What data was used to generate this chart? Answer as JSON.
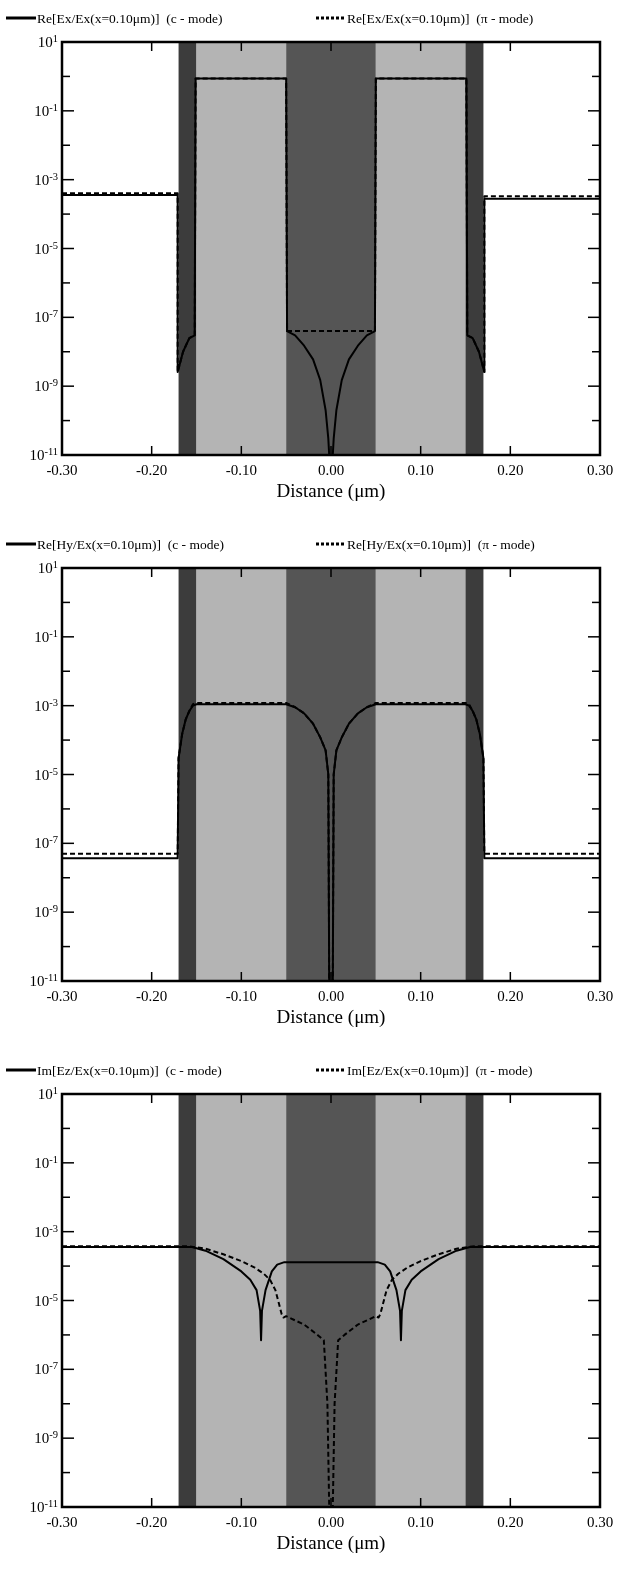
{
  "chart_data": [
    {
      "type": "line",
      "xlabel": "Distance (μm)",
      "log": "y",
      "legend": "top",
      "xlim": [
        -0.3,
        0.3
      ],
      "ylim": [
        1e-11,
        10
      ],
      "xticks": [
        {
          "value": -0.3,
          "label": "-0.30"
        },
        {
          "value": -0.2,
          "label": "-0.20"
        },
        {
          "value": -0.1,
          "label": "-0.10"
        },
        {
          "value": 0,
          "label": "0.00"
        },
        {
          "value": 0.1,
          "label": "0.10"
        },
        {
          "value": 0.2,
          "label": "0.20"
        },
        {
          "value": 0.3,
          "label": "0.30"
        }
      ],
      "yticks": [
        {
          "value": 10,
          "label": "10$^{1}$"
        },
        {
          "value": 1,
          "label": null
        },
        {
          "value": 0.1,
          "label": "10$^{-1}$"
        },
        {
          "value": 0.01,
          "label": null
        },
        {
          "value": 0.001,
          "label": "10$^{-3}$"
        },
        {
          "value": 0.0001,
          "label": null
        },
        {
          "value": 1e-05,
          "label": "10$^{-5}$"
        },
        {
          "value": 1e-06,
          "label": null
        },
        {
          "value": 1e-07,
          "label": "10$^{-7}$"
        },
        {
          "value": 1e-08,
          "label": null
        },
        {
          "value": 1e-09,
          "label": "10$^{-9}$"
        },
        {
          "value": 1e-10,
          "label": null
        },
        {
          "value": 1e-11,
          "label": "10$^{-11}$"
        }
      ],
      "bands": [
        {
          "axis": "x",
          "from": -0.17,
          "to": -0.15,
          "color": "#3c3c3c"
        },
        {
          "axis": "x",
          "from": -0.15,
          "to": -0.05,
          "color": "#b4b4b4"
        },
        {
          "axis": "x",
          "from": -0.05,
          "to": 0.05,
          "color": "#555555"
        },
        {
          "axis": "x",
          "from": 0.05,
          "to": 0.15,
          "color": "#b4b4b4"
        },
        {
          "axis": "x",
          "from": 0.15,
          "to": 0.17,
          "color": "#3c3c3c"
        }
      ],
      "series": [
        {
          "name": "Re[Ex/Ex(x=0.10μm)]  (c - mode)",
          "color": "#000000",
          "line_style": "solid",
          "x": [
            -0.3,
            -0.171,
            -0.171,
            -0.165,
            -0.158,
            -0.152,
            -0.151,
            -0.05,
            -0.049,
            -0.04,
            -0.03,
            -0.02,
            -0.012,
            -0.006,
            -0.003,
            -0.002,
            0.002,
            0.003,
            0.006,
            0.012,
            0.02,
            0.03,
            0.04,
            0.049,
            0.05,
            0.151,
            0.152,
            0.158,
            0.165,
            0.171,
            0.171,
            0.3
          ],
          "values": [
            0.00036,
            0.00036,
            2.6e-09,
            1e-08,
            2.5e-08,
            3e-08,
            0.87,
            0.87,
            4e-08,
            3e-08,
            1.5e-08,
            6e-09,
            1.5e-09,
            2e-10,
            3e-11,
            1e-11,
            1e-11,
            3e-11,
            2e-10,
            1.5e-09,
            6e-09,
            1.5e-08,
            3e-08,
            4e-08,
            0.87,
            0.87,
            3e-08,
            2.5e-08,
            1e-08,
            2.6e-09,
            0.00028,
            0.00028
          ]
        },
        {
          "name": "Re[Ex/Ex(x=0.10μm)]  (π - mode)",
          "color": "#000000",
          "line_style": "dashed",
          "x": [
            -0.3,
            -0.171,
            -0.171,
            -0.165,
            -0.158,
            -0.152,
            -0.151,
            -0.05,
            -0.049,
            0.049,
            0.05,
            0.151,
            0.152,
            0.158,
            0.165,
            0.171,
            0.171,
            0.3
          ],
          "values": [
            0.0004,
            0.0004,
            2.6e-09,
            1e-08,
            2.5e-08,
            3e-08,
            0.87,
            0.87,
            4e-08,
            4e-08,
            0.87,
            0.87,
            3e-08,
            2.5e-08,
            1e-08,
            2.6e-09,
            0.00033,
            0.00033
          ]
        }
      ]
    },
    {
      "type": "line",
      "xlabel": "Distance (μm)",
      "log": "y",
      "legend": "top",
      "xlim": [
        -0.3,
        0.3
      ],
      "ylim": [
        1e-11,
        10
      ],
      "xticks": [
        {
          "value": -0.3,
          "label": "-0.30"
        },
        {
          "value": -0.2,
          "label": "-0.20"
        },
        {
          "value": -0.1,
          "label": "-0.10"
        },
        {
          "value": 0,
          "label": "0.00"
        },
        {
          "value": 0.1,
          "label": "0.10"
        },
        {
          "value": 0.2,
          "label": "0.20"
        },
        {
          "value": 0.3,
          "label": "0.30"
        }
      ],
      "yticks": [
        {
          "value": 10,
          "label": "10$^{1}$"
        },
        {
          "value": 1,
          "label": null
        },
        {
          "value": 0.1,
          "label": "10$^{-1}$"
        },
        {
          "value": 0.01,
          "label": null
        },
        {
          "value": 0.001,
          "label": "10$^{-3}$"
        },
        {
          "value": 0.0001,
          "label": null
        },
        {
          "value": 1e-05,
          "label": "10$^{-5}$"
        },
        {
          "value": 1e-06,
          "label": null
        },
        {
          "value": 1e-07,
          "label": "10$^{-7}$"
        },
        {
          "value": 1e-08,
          "label": null
        },
        {
          "value": 1e-09,
          "label": "10$^{-9}$"
        },
        {
          "value": 1e-10,
          "label": null
        },
        {
          "value": 1e-11,
          "label": "10$^{-11}$"
        }
      ],
      "bands": [
        {
          "axis": "x",
          "from": -0.17,
          "to": -0.15,
          "color": "#3c3c3c"
        },
        {
          "axis": "x",
          "from": -0.15,
          "to": -0.05,
          "color": "#b4b4b4"
        },
        {
          "axis": "x",
          "from": -0.05,
          "to": 0.05,
          "color": "#555555"
        },
        {
          "axis": "x",
          "from": 0.05,
          "to": 0.15,
          "color": "#b4b4b4"
        },
        {
          "axis": "x",
          "from": 0.15,
          "to": 0.17,
          "color": "#3c3c3c"
        }
      ],
      "series": [
        {
          "name": "Re[Hy/Ex(x=0.10μm)]  (c - mode)",
          "color": "#000000",
          "line_style": "solid",
          "x": [
            -0.3,
            -0.171,
            -0.17,
            -0.166,
            -0.162,
            -0.158,
            -0.154,
            -0.15,
            -0.05,
            -0.04,
            -0.03,
            -0.02,
            -0.012,
            -0.006,
            -0.003,
            -0.002,
            0.002,
            0.003,
            0.006,
            0.012,
            0.02,
            0.03,
            0.04,
            0.05,
            0.15,
            0.154,
            0.158,
            0.162,
            0.166,
            0.17,
            0.171,
            0.3
          ],
          "values": [
            3.7e-08,
            3.7e-08,
            3e-05,
            0.00015,
            0.0004,
            0.0007,
            0.001,
            0.0011,
            0.0011,
            0.0009,
            0.0006,
            0.0003,
            0.00012,
            5e-05,
            1e-05,
            1e-11,
            1e-11,
            1e-05,
            5e-05,
            0.00012,
            0.0003,
            0.0006,
            0.0009,
            0.0011,
            0.0011,
            0.001,
            0.0007,
            0.0004,
            0.00015,
            3e-05,
            3.7e-08,
            3.7e-08
          ]
        },
        {
          "name": "Re[Hy/Ex(x=0.10μm)]  (π - mode)",
          "color": "#000000",
          "line_style": "dashed",
          "x": [
            -0.3,
            -0.171,
            -0.17,
            -0.166,
            -0.162,
            -0.158,
            -0.154,
            -0.15,
            -0.05,
            -0.04,
            -0.03,
            -0.02,
            -0.012,
            -0.006,
            -0.003,
            -0.002,
            0.002,
            0.003,
            0.006,
            0.012,
            0.02,
            0.03,
            0.04,
            0.05,
            0.15,
            0.154,
            0.158,
            0.162,
            0.166,
            0.17,
            0.171,
            0.3
          ],
          "values": [
            5e-08,
            5e-08,
            3e-05,
            0.00015,
            0.0004,
            0.0007,
            0.0011,
            0.0012,
            0.0012,
            0.0009,
            0.0006,
            0.0003,
            0.00012,
            5e-05,
            1e-05,
            1e-11,
            1e-11,
            1e-05,
            5e-05,
            0.00012,
            0.0003,
            0.0006,
            0.0009,
            0.0012,
            0.0012,
            0.0011,
            0.0007,
            0.0004,
            0.00015,
            3e-05,
            5e-08,
            5e-08
          ]
        }
      ]
    },
    {
      "type": "line",
      "xlabel": "Distance (μm)",
      "log": "y",
      "legend": "top",
      "xlim": [
        -0.3,
        0.3
      ],
      "ylim": [
        1e-11,
        10
      ],
      "xticks": [
        {
          "value": -0.3,
          "label": "-0.30"
        },
        {
          "value": -0.2,
          "label": "-0.20"
        },
        {
          "value": -0.1,
          "label": "-0.10"
        },
        {
          "value": 0,
          "label": "0.00"
        },
        {
          "value": 0.1,
          "label": "0.10"
        },
        {
          "value": 0.2,
          "label": "0.20"
        },
        {
          "value": 0.3,
          "label": "0.30"
        }
      ],
      "yticks": [
        {
          "value": 10,
          "label": "10$^{1}$"
        },
        {
          "value": 1,
          "label": null
        },
        {
          "value": 0.1,
          "label": "10$^{-1}$"
        },
        {
          "value": 0.01,
          "label": null
        },
        {
          "value": 0.001,
          "label": "10$^{-3}$"
        },
        {
          "value": 0.0001,
          "label": null
        },
        {
          "value": 1e-05,
          "label": "10$^{-5}$"
        },
        {
          "value": 1e-06,
          "label": null
        },
        {
          "value": 1e-07,
          "label": "10$^{-7}$"
        },
        {
          "value": 1e-08,
          "label": null
        },
        {
          "value": 1e-09,
          "label": "10$^{-9}$"
        },
        {
          "value": 1e-10,
          "label": null
        },
        {
          "value": 1e-11,
          "label": "10$^{-11}$"
        }
      ],
      "bands": [
        {
          "axis": "x",
          "from": -0.17,
          "to": -0.15,
          "color": "#3c3c3c"
        },
        {
          "axis": "x",
          "from": -0.15,
          "to": -0.05,
          "color": "#b4b4b4"
        },
        {
          "axis": "x",
          "from": -0.05,
          "to": 0.05,
          "color": "#555555"
        },
        {
          "axis": "x",
          "from": 0.05,
          "to": 0.15,
          "color": "#b4b4b4"
        },
        {
          "axis": "x",
          "from": 0.15,
          "to": 0.17,
          "color": "#3c3c3c"
        }
      ],
      "series": [
        {
          "name": "Im[Ez/Ex(x=0.10μm)]  (c - mode)",
          "color": "#000000",
          "line_style": "solid",
          "x": [
            -0.3,
            -0.155,
            -0.14,
            -0.12,
            -0.1,
            -0.09,
            -0.083,
            -0.079,
            -0.078,
            -0.077,
            -0.073,
            -0.066,
            -0.06,
            -0.052,
            0.052,
            0.06,
            0.066,
            0.073,
            0.077,
            0.078,
            0.079,
            0.083,
            0.09,
            0.1,
            0.12,
            0.14,
            0.155,
            0.3
          ],
          "values": [
            0.00036,
            0.00036,
            0.00028,
            0.00016,
            7e-05,
            4e-05,
            2e-05,
            5e-06,
            7e-07,
            5e-06,
            2e-05,
            7e-05,
            0.00011,
            0.00013,
            0.00013,
            0.00011,
            7e-05,
            2e-05,
            5e-06,
            7e-07,
            5e-06,
            2e-05,
            4e-05,
            7e-05,
            0.00016,
            0.00028,
            0.00036,
            0.00036
          ]
        },
        {
          "name": "Im[Ez/Ex(x=0.10μm)]  (π - mode)",
          "color": "#000000",
          "line_style": "dashed",
          "x": [
            -0.3,
            -0.16,
            -0.14,
            -0.12,
            -0.1,
            -0.085,
            -0.075,
            -0.068,
            -0.062,
            -0.058,
            -0.055,
            -0.053,
            -0.05,
            -0.03,
            -0.015,
            -0.008,
            -0.004,
            -0.002,
            0.002,
            0.004,
            0.008,
            0.015,
            0.03,
            0.05,
            0.053,
            0.055,
            0.058,
            0.062,
            0.068,
            0.075,
            0.085,
            0.1,
            0.12,
            0.14,
            0.16,
            0.3
          ],
          "values": [
            0.00038,
            0.00038,
            0.00032,
            0.00022,
            0.00014,
            9e-05,
            6e-05,
            4e-05,
            2e-05,
            8e-06,
            4e-06,
            3.2e-06,
            3.5e-06,
            2e-06,
            1e-06,
            7e-07,
            1e-08,
            1e-11,
            1e-11,
            1e-08,
            7e-07,
            1e-06,
            2e-06,
            3.5e-06,
            3.2e-06,
            4e-06,
            8e-06,
            2e-05,
            4e-05,
            6e-05,
            9e-05,
            0.00014,
            0.00022,
            0.00032,
            0.00038,
            0.00038
          ]
        }
      ]
    }
  ]
}
